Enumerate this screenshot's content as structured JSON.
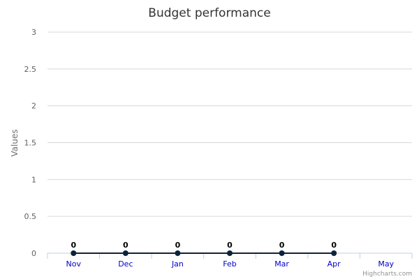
{
  "chart_data": {
    "type": "line",
    "title": "Budget performance",
    "xlabel": "",
    "ylabel": "Values",
    "categories": [
      "Nov",
      "Dec",
      "Jan",
      "Feb",
      "Mar",
      "Apr",
      "May"
    ],
    "series": [
      {
        "values": [
          0,
          0,
          0,
          0,
          0,
          0,
          null
        ]
      }
    ],
    "ylim": [
      0,
      3
    ],
    "yticks": [
      0,
      0.5,
      1,
      1.5,
      2,
      2.5,
      3
    ],
    "ytick_labels": [
      "0",
      "0.5",
      "1",
      "1.5",
      "2",
      "2.5",
      "3"
    ],
    "data_labels": [
      "0",
      "0",
      "0",
      "0",
      "0",
      "0"
    ],
    "grid": true,
    "legend": "none"
  },
  "credits": "Highcharts.com",
  "colors": {
    "series": "#0d233a",
    "grid": "#d8d8d8",
    "axis": "#c0d0e0",
    "tick_label_x": "#0000cc",
    "tick_label_y": "#606060"
  }
}
